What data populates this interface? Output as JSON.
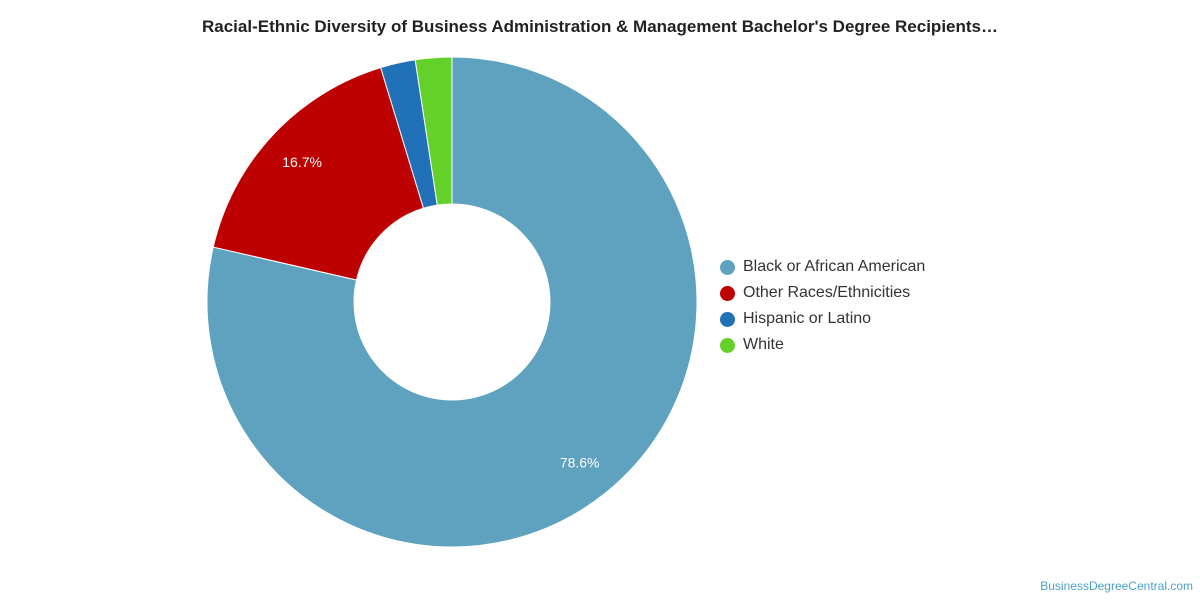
{
  "chart_data": {
    "type": "pie",
    "title": "Racial-Ethnic Diversity of Business Administration & Management Bachelor's Degree Recipients…",
    "categories": [
      "Black or African American",
      "Other Races/Ethnicities",
      "Hispanic or Latino",
      "White"
    ],
    "values": [
      78.6,
      16.7,
      2.3,
      2.4
    ],
    "colors": [
      "#5ea2bf",
      "#bd0000",
      "#2171b8",
      "#63d12a"
    ],
    "data_labels": [
      "78.6%",
      "16.7%",
      "",
      ""
    ],
    "donut": true,
    "legend_position": "right"
  },
  "credit": "BusinessDegreeCentral.com"
}
